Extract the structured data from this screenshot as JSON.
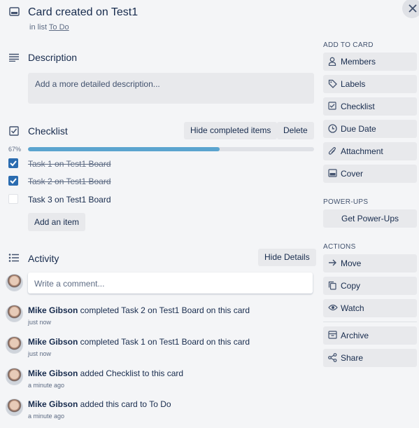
{
  "card": {
    "title": "Card created on Test1",
    "list_prefix": "in list",
    "list_name": "To Do"
  },
  "description": {
    "heading": "Description",
    "placeholder": "Add a more detailed description..."
  },
  "checklist": {
    "heading": "Checklist",
    "hide_completed_label": "Hide completed items",
    "delete_label": "Delete",
    "progress_text": "67%",
    "progress_fraction": 0.67,
    "items": [
      {
        "text": "Task 1 on Test1 Board",
        "checked": true
      },
      {
        "text": "Task 2 on Test1 Board",
        "checked": true
      },
      {
        "text": "Task 3 on Test1 Board",
        "checked": false
      }
    ],
    "add_item_label": "Add an item"
  },
  "activity": {
    "heading": "Activity",
    "hide_details_label": "Hide Details",
    "comment_placeholder": "Write a comment...",
    "entries": [
      {
        "user": "Mike Gibson",
        "text": " completed Task 2 on Test1 Board on this card",
        "time": "just now"
      },
      {
        "user": "Mike Gibson",
        "text": " completed Task 1 on Test1 Board on this card",
        "time": "just now"
      },
      {
        "user": "Mike Gibson",
        "text": " added Checklist to this card",
        "time": "a minute ago"
      },
      {
        "user": "Mike Gibson",
        "text": " added this card to To Do",
        "time": "a minute ago"
      }
    ]
  },
  "sidebar": {
    "add_to_card_heading": "ADD TO CARD",
    "add_to_card": [
      {
        "label": "Members",
        "icon": "person-icon"
      },
      {
        "label": "Labels",
        "icon": "tag-icon"
      },
      {
        "label": "Checklist",
        "icon": "checklist-icon"
      },
      {
        "label": "Due Date",
        "icon": "clock-icon"
      },
      {
        "label": "Attachment",
        "icon": "paperclip-icon"
      },
      {
        "label": "Cover",
        "icon": "cover-icon"
      }
    ],
    "power_ups_heading": "POWER-UPS",
    "get_power_ups_label": "Get Power-Ups",
    "actions_heading": "ACTIONS",
    "actions": [
      {
        "label": "Move",
        "icon": "arrow-right-icon"
      },
      {
        "label": "Copy",
        "icon": "copy-icon"
      },
      {
        "label": "Watch",
        "icon": "eye-icon"
      },
      {
        "label": "Archive",
        "icon": "archive-icon"
      },
      {
        "label": "Share",
        "icon": "share-icon"
      }
    ]
  },
  "colors": {
    "progress": "#5ba4cf",
    "checkbox": "#2b6cb0",
    "background": "#f4f5f7"
  }
}
